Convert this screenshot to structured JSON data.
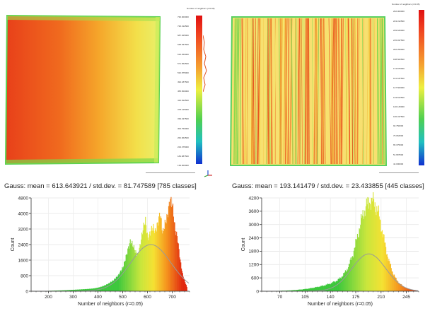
{
  "panels": [
    {
      "scale_title": "Number of neighbors (r=0.05)",
      "scale_ticks": [
        "730.000000",
        "726.312500",
        "687.625000",
        "648.937500",
        "610.250000",
        "571.562500",
        "532.875000",
        "494.187500",
        "455.500000",
        "416.812500",
        "378.125000",
        "339.437500",
        "300.750000",
        "262.062500",
        "223.375000",
        "184.687500",
        "139.000000"
      ],
      "gauss_text": "Gauss: mean = 613.643921 / std.dev. = 81.747589 [785 classes]",
      "x_axis_label": "Number of neighbors (r=0.05)",
      "y_axis_label": "Count"
    },
    {
      "scale_title": "Number of neighbors (r=0.05)",
      "scale_ticks": [
        "262.000000",
        "243.312500",
        "229.625000",
        "215.937500",
        "202.250000",
        "188.562500",
        "174.875000",
        "161.187500",
        "147.500000",
        "133.812500",
        "120.125000",
        "106.437500",
        "92.750000",
        "79.062500",
        "65.375000",
        "51.687500",
        "44.000000"
      ],
      "gauss_text": "Gauss: mean = 193.141479 / std.dev. = 23.433855 [445 classes]",
      "x_axis_label": "Number of neighbors (r=0.05)",
      "y_axis_label": "Count"
    }
  ],
  "chart_data": [
    {
      "type": "bar",
      "xlabel": "Number of neighbors (r=0.05)",
      "ylabel": "Count",
      "xlim": [
        130,
        770
      ],
      "ylim": [
        0,
        4800
      ],
      "x_ticks": [
        200,
        300,
        400,
        500,
        600,
        700
      ],
      "y_ticks": [
        0,
        800,
        1600,
        2400,
        3200,
        4000,
        4800
      ],
      "histogram": {
        "x": [
          140,
          160,
          180,
          200,
          220,
          240,
          260,
          280,
          300,
          320,
          340,
          360,
          380,
          400,
          420,
          440,
          460,
          480,
          500,
          510,
          520,
          530,
          540,
          550,
          560,
          570,
          580,
          590,
          600,
          610,
          620,
          630,
          640,
          650,
          660,
          670,
          680,
          690,
          700,
          710,
          720,
          730,
          740,
          750,
          760
        ],
        "y": [
          0,
          5,
          10,
          20,
          30,
          40,
          50,
          60,
          70,
          80,
          100,
          120,
          150,
          190,
          260,
          360,
          520,
          800,
          1300,
          1800,
          2300,
          2700,
          2400,
          2000,
          1800,
          2300,
          3000,
          3500,
          2600,
          3000,
          3400,
          3200,
          3700,
          4300,
          3100,
          3600,
          3900,
          4600,
          4200,
          3000,
          2600,
          1600,
          900,
          500,
          150
        ]
      },
      "gauss_curve": {
        "mean": 613.643921,
        "std": 81.747589,
        "peak": 2400
      }
    },
    {
      "type": "bar",
      "xlabel": "Number of neighbors (r=0.05)",
      "ylabel": "Count",
      "xlim": [
        45,
        262
      ],
      "ylim": [
        0,
        4200
      ],
      "x_ticks": [
        70,
        105,
        140,
        175,
        210,
        245
      ],
      "y_ticks": [
        0,
        600,
        1200,
        1800,
        2400,
        3000,
        3600,
        4200
      ],
      "histogram": {
        "x": [
          50,
          60,
          70,
          80,
          90,
          100,
          110,
          120,
          130,
          140,
          150,
          155,
          160,
          165,
          170,
          175,
          180,
          185,
          190,
          195,
          200,
          205,
          210,
          215,
          220,
          225,
          230,
          235,
          240,
          245,
          250,
          255,
          260
        ],
        "y": [
          5,
          10,
          20,
          30,
          50,
          80,
          120,
          180,
          250,
          350,
          500,
          650,
          850,
          1150,
          1600,
          2200,
          2900,
          3500,
          3900,
          4100,
          4000,
          3600,
          2900,
          2100,
          1400,
          900,
          550,
          350,
          220,
          140,
          80,
          40,
          10
        ]
      },
      "gauss_curve": {
        "mean": 193.141479,
        "std": 23.433855,
        "peak": 1680
      }
    }
  ]
}
